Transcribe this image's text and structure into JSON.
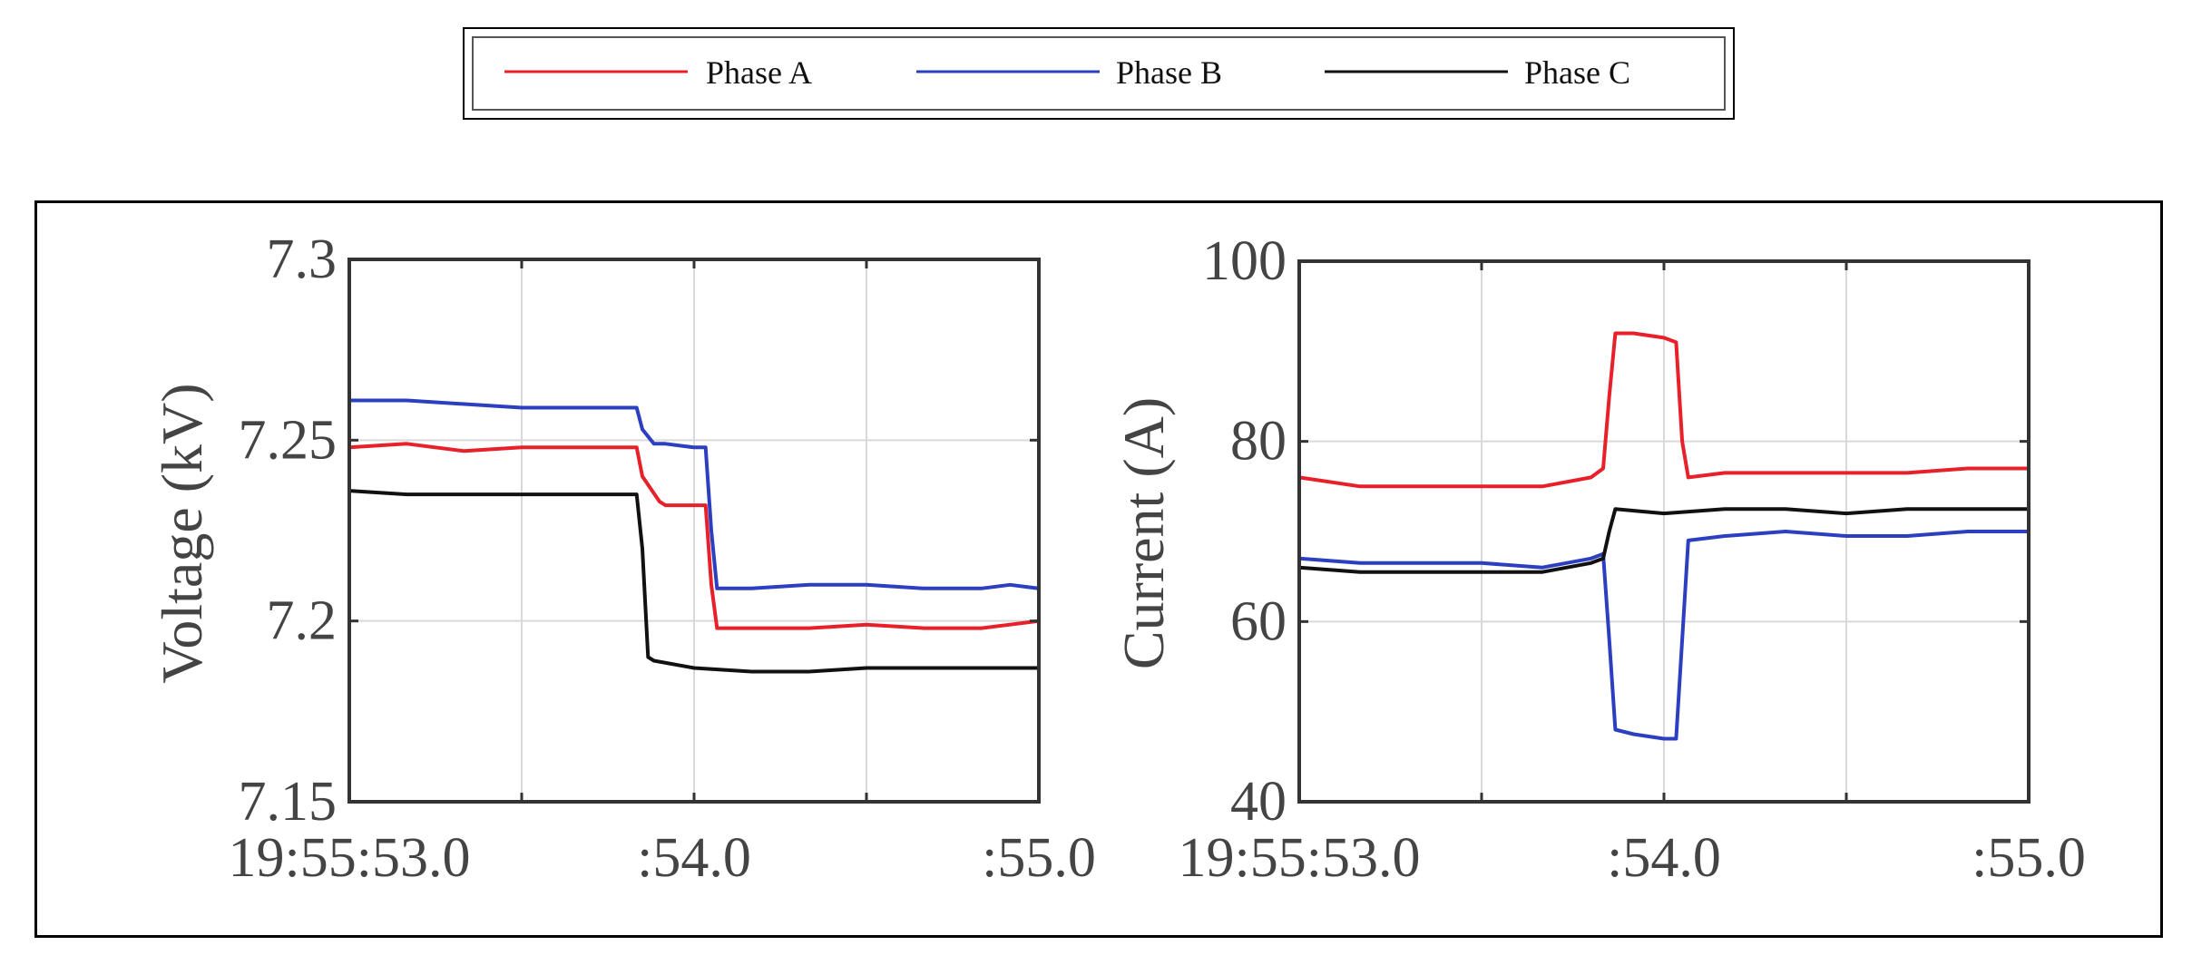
{
  "legend": {
    "entries": [
      {
        "label": "Phase A",
        "color": "#e8202a"
      },
      {
        "label": "Phase B",
        "color": "#2b3fc0"
      },
      {
        "label": "Phase C",
        "color": "#111111"
      }
    ]
  },
  "chart_data": [
    {
      "type": "line",
      "title": "",
      "xlabel": "",
      "ylabel": "Voltage (kV)",
      "xlim": [
        0,
        120
      ],
      "ylim": [
        7.15,
        7.3
      ],
      "yticks": [
        7.15,
        7.2,
        7.25,
        7.3
      ],
      "ytick_labels": [
        "7.15",
        "7.2",
        "7.25",
        "7.3"
      ],
      "xticks": [
        0,
        60,
        120
      ],
      "xtick_labels": [
        "19:55:53.0",
        ":54.0",
        ":55.0"
      ],
      "grid": true,
      "series": [
        {
          "name": "Phase A",
          "color": "#e8202a",
          "x": [
            0,
            10,
            20,
            30,
            40,
            50,
            51,
            54,
            55,
            56,
            60,
            62,
            63,
            64,
            70,
            80,
            90,
            100,
            110,
            115,
            120
          ],
          "y": [
            7.248,
            7.249,
            7.247,
            7.248,
            7.248,
            7.248,
            7.24,
            7.233,
            7.232,
            7.232,
            7.232,
            7.232,
            7.21,
            7.198,
            7.198,
            7.198,
            7.199,
            7.198,
            7.198,
            7.199,
            7.2
          ]
        },
        {
          "name": "Phase B",
          "color": "#2b3fc0",
          "x": [
            0,
            10,
            20,
            30,
            40,
            50,
            51,
            53,
            55,
            60,
            62,
            63,
            64,
            70,
            80,
            90,
            100,
            110,
            115,
            120
          ],
          "y": [
            7.261,
            7.261,
            7.26,
            7.259,
            7.259,
            7.259,
            7.253,
            7.249,
            7.249,
            7.248,
            7.248,
            7.225,
            7.209,
            7.209,
            7.21,
            7.21,
            7.209,
            7.209,
            7.21,
            7.209
          ]
        },
        {
          "name": "Phase C",
          "color": "#111111",
          "x": [
            0,
            10,
            20,
            30,
            40,
            50,
            51,
            52,
            53,
            60,
            70,
            80,
            90,
            100,
            110,
            120
          ],
          "y": [
            7.236,
            7.235,
            7.235,
            7.235,
            7.235,
            7.235,
            7.22,
            7.19,
            7.189,
            7.187,
            7.186,
            7.186,
            7.187,
            7.187,
            7.187,
            7.187
          ]
        }
      ]
    },
    {
      "type": "line",
      "title": "",
      "xlabel": "",
      "ylabel": "Current (A)",
      "xlim": [
        0,
        120
      ],
      "ylim": [
        40,
        100
      ],
      "yticks": [
        40,
        60,
        80,
        100
      ],
      "ytick_labels": [
        "40",
        "60",
        "80",
        "100"
      ],
      "xticks": [
        0,
        60,
        120
      ],
      "xtick_labels": [
        "19:55:53.0",
        ":54.0",
        ":55.0"
      ],
      "grid": true,
      "series": [
        {
          "name": "Phase A",
          "color": "#e8202a",
          "x": [
            0,
            10,
            20,
            30,
            40,
            48,
            50,
            51,
            52,
            55,
            60,
            62,
            63,
            64,
            70,
            80,
            90,
            100,
            110,
            120
          ],
          "y": [
            76,
            75,
            75,
            75,
            75,
            76,
            77,
            85,
            92,
            92,
            91.5,
            91,
            80,
            76,
            76.5,
            76.5,
            76.5,
            76.5,
            77,
            77
          ]
        },
        {
          "name": "Phase B",
          "color": "#2b3fc0",
          "x": [
            0,
            10,
            20,
            30,
            40,
            48,
            50,
            51,
            52,
            55,
            60,
            62,
            63,
            64,
            70,
            80,
            90,
            100,
            110,
            120
          ],
          "y": [
            67,
            66.5,
            66.5,
            66.5,
            66,
            67,
            67.5,
            58,
            48,
            47.5,
            47,
            47,
            58,
            69,
            69.5,
            70,
            69.5,
            69.5,
            70,
            70
          ]
        },
        {
          "name": "Phase C",
          "color": "#111111",
          "x": [
            0,
            10,
            20,
            30,
            40,
            48,
            50,
            51,
            52,
            60,
            70,
            80,
            90,
            100,
            110,
            120
          ],
          "y": [
            66,
            65.5,
            65.5,
            65.5,
            65.5,
            66.5,
            67,
            70,
            72.5,
            72,
            72.5,
            72.5,
            72,
            72.5,
            72.5,
            72.5
          ]
        }
      ]
    }
  ]
}
